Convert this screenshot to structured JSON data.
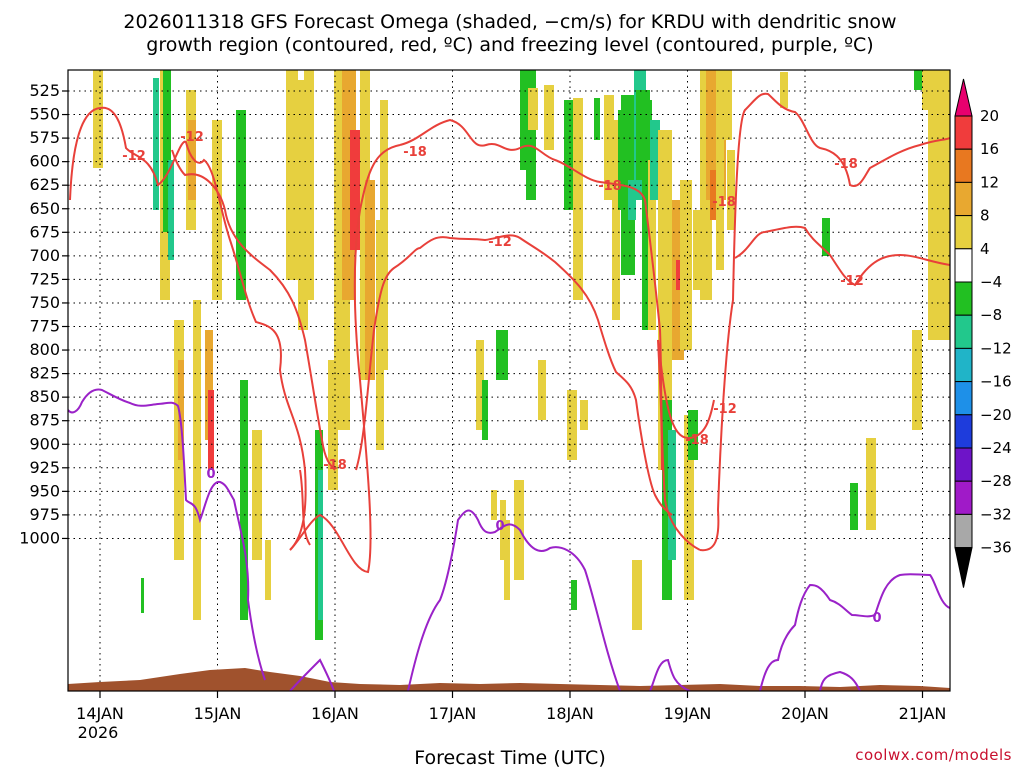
{
  "chart_data": {
    "type": "heatmap",
    "title": "2026011318 GFS Forecast Omega (shaded, −cm/s) for KRDU with dendritic snow",
    "subtitle": "growth region (contoured, red, ºC) and freezing level (contoured, purple, ºC)",
    "xlabel": "Forecast Time (UTC)",
    "credit": "coolwx.com/models",
    "y_ticks": [
      "525",
      "550",
      "575",
      "600",
      "625",
      "650",
      "675",
      "700",
      "725",
      "750",
      "775",
      "800",
      "825",
      "850",
      "875",
      "900",
      "925",
      "950",
      "975",
      "1000"
    ],
    "y_values": [
      525,
      550,
      575,
      600,
      625,
      650,
      675,
      700,
      725,
      750,
      775,
      800,
      825,
      850,
      875,
      900,
      925,
      950,
      975,
      1000
    ],
    "y_axis": "pressure (hPa), inverted",
    "x_ticks": [
      "14JAN",
      "15JAN",
      "16JAN",
      "17JAN",
      "18JAN",
      "19JAN",
      "20JAN",
      "21JAN"
    ],
    "x_tick_year": "2026",
    "x_range_hours": [
      0,
      186
    ],
    "colorbar": {
      "labels": [
        "20",
        "16",
        "12",
        "8",
        "4",
        "−4",
        "−8",
        "−12",
        "−16",
        "−20",
        "−24",
        "−28",
        "−32",
        "−36"
      ],
      "colors": [
        "#e8006e",
        "#f03c3c",
        "#e87820",
        "#e8a830",
        "#e6d040",
        "#ffffff",
        "#22c022",
        "#22c88c",
        "#20b4c8",
        "#1e90e8",
        "#1e3cdc",
        "#6e14c8",
        "#a01ac8",
        "#a8a8a8",
        "#000000"
      ]
    },
    "contours": {
      "red_labels": [
        "-12",
        "-12",
        "-18",
        "-18",
        "-12",
        "-18",
        "-18",
        "-12",
        "-18",
        "-18",
        "-12"
      ],
      "purple_labels": [
        "0",
        "0",
        "0"
      ]
    },
    "grid": "dotted"
  }
}
